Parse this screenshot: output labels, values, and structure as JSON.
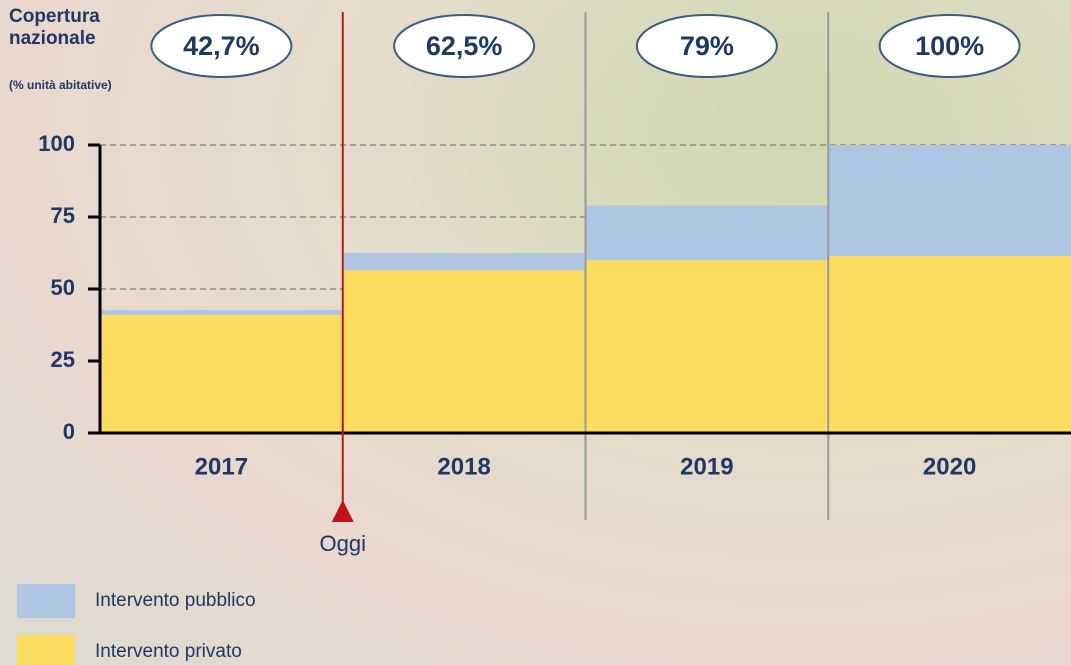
{
  "chart_data": {
    "type": "stacked_bar",
    "title": "Copertura nazionale",
    "subtitle": "(% unità abitative)",
    "categories": [
      "2017",
      "2018",
      "2019",
      "2020"
    ],
    "series": [
      {
        "name": "Intervento privato",
        "color": "#fbdc5e",
        "values": [
          41,
          56.5,
          60,
          61.5
        ]
      },
      {
        "name": "Intervento pubblico",
        "color": "#afc6e3",
        "values": [
          1.7,
          6,
          19,
          38.5
        ]
      }
    ],
    "totals": {
      "values": [
        42.7,
        62.5,
        79,
        100
      ],
      "value_labels": [
        "42,7%",
        "62,5%",
        "79%",
        "100%"
      ]
    },
    "ylim": [
      0,
      100
    ],
    "yticks": [
      0,
      25,
      50,
      75,
      100
    ],
    "grid": true,
    "annotation": "Oggi",
    "legend": "bottom-left"
  }
}
